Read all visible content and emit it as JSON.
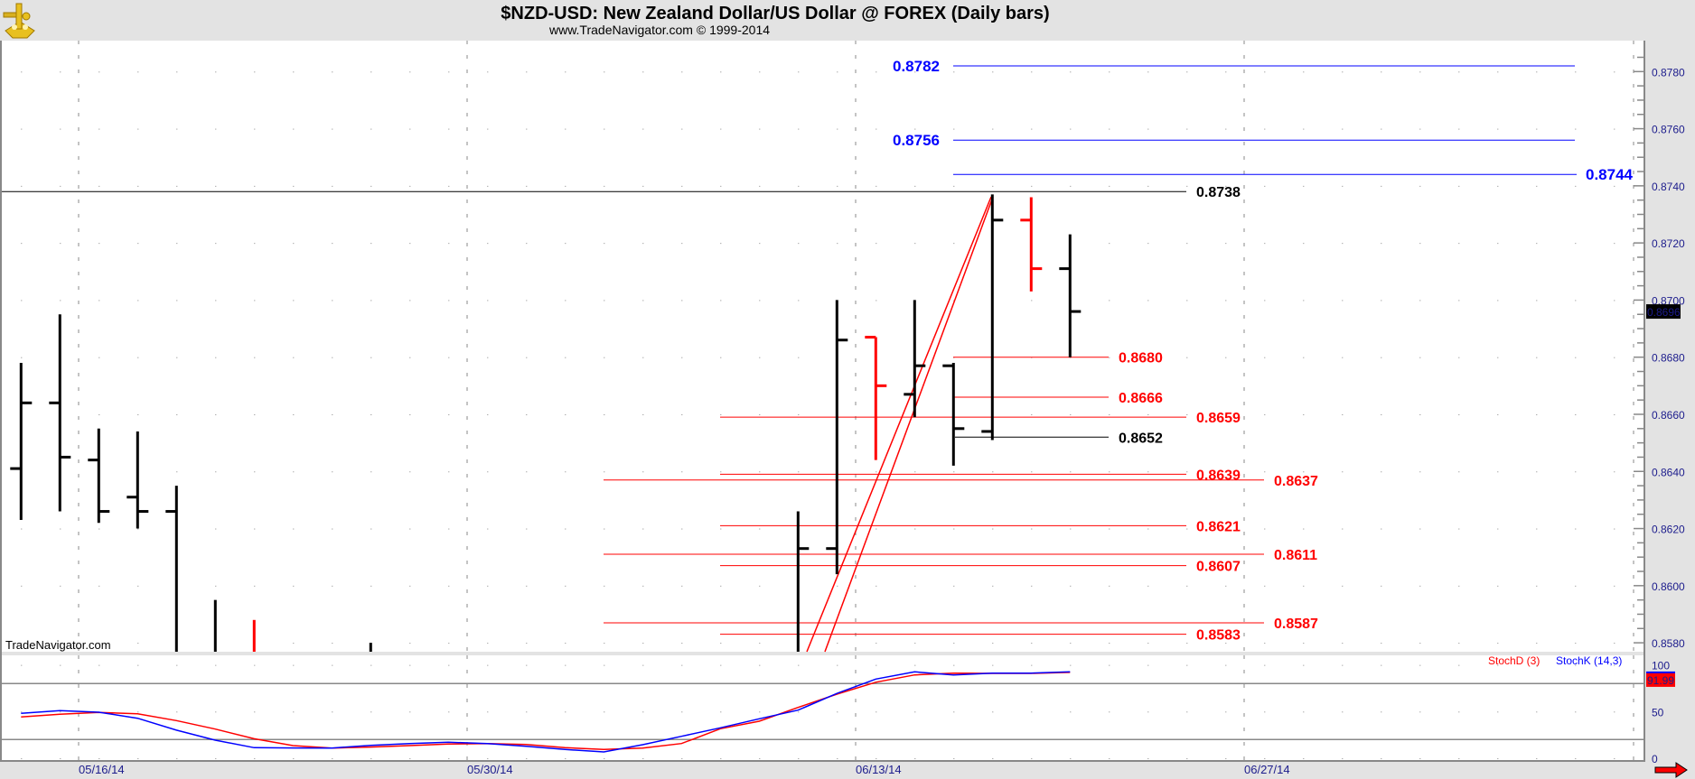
{
  "header": {
    "title": "$NZD-USD:  New Zealand Dollar/US Dollar @ FOREX  (Daily bars)",
    "subtitle": "www.TradeNavigator.com © 1999-2014",
    "logo_icon": "sextant-icon"
  },
  "watermark": "TradeNavigator.com",
  "colors": {
    "up_bar": "#000000",
    "down_bar": "#ff0000",
    "blue_level": "#0000ff",
    "red_level": "#ff0000",
    "stochD": "#ff0000",
    "stochK": "#0000ff",
    "axis_text": "#1c1c8c",
    "background": "#e3e3e3"
  },
  "chart_data": [
    {
      "type": "ohlc",
      "title": "$NZD-USD:  New Zealand Dollar/US Dollar @ FOREX  (Daily bars)",
      "ylim": [
        0.8577,
        0.879
      ],
      "yticks": [
        "0.8780",
        "0.8760",
        "0.8740",
        "0.8720",
        "0.8700",
        "0.8680",
        "0.8660",
        "0.8640",
        "0.8620",
        "0.8600",
        "0.8580"
      ],
      "date_labels": [
        "05/16/14",
        "05/30/14",
        "06/13/14",
        "06/27/14"
      ],
      "last_price": "0.8696",
      "bars": [
        {
          "i": 0,
          "o": 0.8641,
          "h": 0.8678,
          "l": 0.8623,
          "c": 0.8664,
          "color": "black"
        },
        {
          "i": 1,
          "o": 0.8664,
          "h": 0.8695,
          "l": 0.8626,
          "c": 0.8645,
          "color": "black"
        },
        {
          "i": 2,
          "o": 0.8644,
          "h": 0.8655,
          "l": 0.8622,
          "c": 0.8626,
          "color": "black"
        },
        {
          "i": 3,
          "o": 0.8631,
          "h": 0.8654,
          "l": 0.862,
          "c": 0.8626,
          "color": "black"
        },
        {
          "i": 4,
          "o": 0.8626,
          "h": 0.8635,
          "l": null,
          "c": null,
          "color": "black"
        },
        {
          "i": 5,
          "o": null,
          "h": 0.8595,
          "l": null,
          "c": null,
          "color": "black"
        },
        {
          "i": 6,
          "o": null,
          "h": 0.8588,
          "l": null,
          "c": null,
          "color": "red"
        },
        {
          "i": 9,
          "o": null,
          "h": 0.858,
          "l": null,
          "c": null,
          "color": "black"
        },
        {
          "i": 20,
          "o": null,
          "h": 0.8626,
          "l": null,
          "c": 0.8613,
          "color": "black"
        },
        {
          "i": 21,
          "o": 0.8613,
          "h": 0.87,
          "l": 0.8604,
          "c": 0.8686,
          "color": "black"
        },
        {
          "i": 22,
          "o": 0.8687,
          "h": 0.8687,
          "l": 0.8644,
          "c": 0.867,
          "color": "red"
        },
        {
          "i": 23,
          "o": 0.8667,
          "h": 0.87,
          "l": 0.8659,
          "c": 0.8677,
          "color": "black"
        },
        {
          "i": 24,
          "o": 0.8677,
          "h": 0.8678,
          "l": 0.8642,
          "c": 0.8655,
          "color": "black"
        },
        {
          "i": 25,
          "o": 0.8654,
          "h": 0.8737,
          "l": 0.8651,
          "c": 0.8728,
          "color": "black"
        },
        {
          "i": 26,
          "o": 0.8728,
          "h": 0.8736,
          "l": 0.8703,
          "c": 0.8711,
          "color": "red"
        },
        {
          "i": 27,
          "o": 0.8711,
          "h": 0.8723,
          "l": 0.868,
          "c": 0.8696,
          "color": "black"
        }
      ],
      "levels": [
        {
          "price": 0.8782,
          "label": "0.8782",
          "color": "blue"
        },
        {
          "price": 0.8756,
          "label": "0.8756",
          "color": "blue"
        },
        {
          "price": 0.8744,
          "label": "0.8744",
          "color": "blue"
        },
        {
          "price": 0.8738,
          "label": "0.8738",
          "color": "black"
        },
        {
          "price": 0.868,
          "label": "0.8680",
          "color": "red"
        },
        {
          "price": 0.8666,
          "label": "0.8666",
          "color": "red"
        },
        {
          "price": 0.8659,
          "label": "0.8659",
          "color": "red"
        },
        {
          "price": 0.8652,
          "label": "0.8652",
          "color": "black"
        },
        {
          "price": 0.8639,
          "label": "0.8639",
          "color": "red"
        },
        {
          "price": 0.8637,
          "label": "0.8637",
          "color": "red"
        },
        {
          "price": 0.8621,
          "label": "0.8621",
          "color": "red"
        },
        {
          "price": 0.8611,
          "label": "0.8611",
          "color": "red"
        },
        {
          "price": 0.8607,
          "label": "0.8607",
          "color": "red"
        },
        {
          "price": 0.8587,
          "label": "0.8587",
          "color": "red"
        },
        {
          "price": 0.8583,
          "label": "0.8583",
          "color": "red"
        }
      ]
    },
    {
      "type": "line",
      "ylim": [
        0,
        100
      ],
      "yticks": [
        "100",
        "50",
        "0"
      ],
      "reference_lines": [
        80,
        20
      ],
      "last_value": "91.99",
      "series": [
        {
          "name": "StochD (3)",
          "color": "red",
          "values": [
            44.2,
            47.1,
            49.0,
            47.7,
            40.3,
            31.2,
            20.9,
            13.5,
            10.9,
            11.9,
            13.5,
            15.1,
            15.7,
            14.8,
            11.3,
            9.3,
            10.9,
            15.7,
            31.6,
            39.6,
            54.4,
            68.7,
            81.5,
            89.3,
            91.2,
            90.9,
            90.9,
            91.99
          ]
        },
        {
          "name": "StochK (14,3)",
          "color": "blue",
          "values": [
            48.1,
            51.0,
            49.3,
            42.8,
            30.0,
            19.3,
            11.3,
            11.0,
            10.9,
            13.8,
            15.7,
            17.1,
            15.7,
            12.8,
            9.3,
            6.7,
            14.5,
            23.5,
            32.6,
            42.2,
            51.5,
            69.4,
            84.8,
            92.6,
            89.3,
            91.2,
            91.2,
            92.6
          ]
        }
      ]
    }
  ]
}
